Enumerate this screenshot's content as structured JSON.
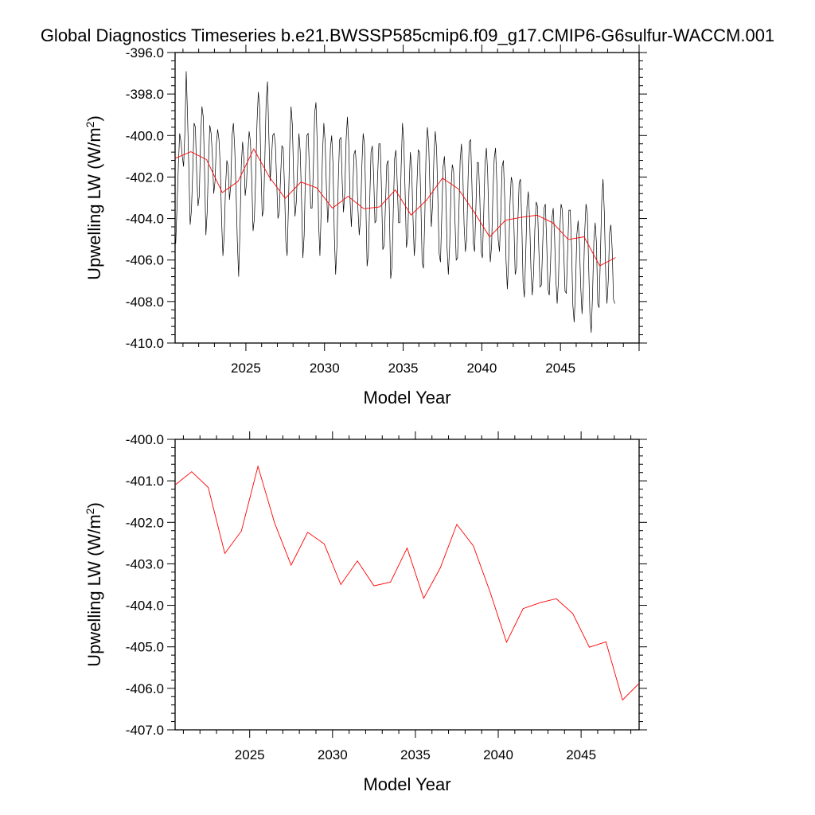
{
  "title": "Global Diagnostics Timeseries b.e21.BWSSP585cmip6.f09_g17.CMIP6-G6sulfur-WACCM.001",
  "colors": {
    "monthly": "#000000",
    "annual": "#ff0000",
    "axis": "#000000"
  },
  "chart_data": [
    {
      "type": "line",
      "xlabel": "Model Year",
      "ylabel": "Upwelling LW (W/m",
      "ylabel_sup": "2",
      "ylabel_close": ")",
      "xlim": [
        2020.5,
        2050.0
      ],
      "ylim": [
        -410.0,
        -396.0
      ],
      "x_ticks": [
        2025,
        2030,
        2035,
        2040,
        2045
      ],
      "y_ticks": [
        "-396.0",
        "-398.0",
        "-400.0",
        "-402.0",
        "-404.0",
        "-406.0",
        "-408.0",
        "-410.0"
      ],
      "grid": false,
      "series": [
        {
          "kind": "monthly",
          "color": "#000000",
          "x_start": 2020.54,
          "x_step": 0.08333,
          "values": [
            -405.2,
            -403.4,
            -401.5,
            -399.9,
            -400.3,
            -401.0,
            -401.5,
            -399.8,
            -396.9,
            -399.0,
            -401.6,
            -404.3,
            -403.6,
            -401.7,
            -399.4,
            -399.6,
            -401.8,
            -403.4,
            -402.9,
            -400.1,
            -398.6,
            -399.1,
            -401.7,
            -404.8,
            -403.7,
            -401.3,
            -399.5,
            -399.9,
            -401.0,
            -402.8,
            -402.2,
            -400.4,
            -399.7,
            -400.2,
            -401.5,
            -404.1,
            -405.8,
            -404.8,
            -402.5,
            -401.2,
            -401.5,
            -403.1,
            -402.4,
            -400.0,
            -399.4,
            -400.6,
            -402.6,
            -405.1,
            -406.8,
            -404.6,
            -401.5,
            -400.3,
            -401.1,
            -402.9,
            -402.3,
            -400.9,
            -399.8,
            -400.3,
            -402.1,
            -404.6,
            -404.0,
            -402.0,
            -399.4,
            -397.9,
            -398.6,
            -401.5,
            -403.9,
            -403.6,
            -401.1,
            -398.3,
            -397.4,
            -399.9,
            -402.2,
            -401.2,
            -400.0,
            -399.9,
            -400.4,
            -402.2,
            -404.0,
            -403.7,
            -402.0,
            -400.5,
            -400.6,
            -402.5,
            -405.1,
            -405.8,
            -403.4,
            -400.4,
            -398.6,
            -399.5,
            -402.1,
            -403.9,
            -403.2,
            -401.5,
            -399.9,
            -400.8,
            -403.1,
            -405.9,
            -404.8,
            -401.7,
            -400.0,
            -399.9,
            -401.6,
            -403.5,
            -403.5,
            -401.6,
            -398.9,
            -398.4,
            -400.5,
            -404.2,
            -405.8,
            -403.6,
            -400.8,
            -399.4,
            -400.3,
            -402.6,
            -404.2,
            -403.0,
            -400.6,
            -400.0,
            -401.4,
            -404.8,
            -406.7,
            -405.3,
            -402.2,
            -400.2,
            -400.1,
            -402.2,
            -403.7,
            -402.7,
            -400.2,
            -399.1,
            -400.4,
            -403.1,
            -404.4,
            -402.8,
            -400.9,
            -400.7,
            -401.6,
            -403.5,
            -404.8,
            -404.0,
            -401.5,
            -399.9,
            -400.4,
            -403.1,
            -406.3,
            -405.7,
            -403.2,
            -400.8,
            -400.5,
            -401.9,
            -404.2,
            -404.1,
            -402.0,
            -400.4,
            -400.4,
            -402.6,
            -405.5,
            -405.3,
            -403.4,
            -401.4,
            -401.2,
            -403.6,
            -406.9,
            -406.3,
            -403.6,
            -401.1,
            -400.7,
            -402.3,
            -404.2,
            -404.2,
            -401.5,
            -399.4,
            -400.3,
            -402.7,
            -405.4,
            -404.9,
            -402.6,
            -400.8,
            -401.6,
            -403.9,
            -405.8,
            -404.9,
            -402.4,
            -400.7,
            -400.8,
            -403.1,
            -406.1,
            -406.4,
            -404.0,
            -400.8,
            -399.6,
            -400.4,
            -402.7,
            -404.4,
            -403.3,
            -401.0,
            -399.8,
            -400.6,
            -403.0,
            -405.7,
            -406.1,
            -403.8,
            -401.5,
            -401.0,
            -402.4,
            -405.4,
            -406.7,
            -405.3,
            -402.6,
            -401.4,
            -401.7,
            -404.0,
            -406.0,
            -405.9,
            -403.8,
            -401.2,
            -400.4,
            -401.7,
            -404.3,
            -405.6,
            -405.0,
            -402.2,
            -400.3,
            -400.2,
            -402.4,
            -405.2,
            -405.6,
            -403.5,
            -401.3,
            -401.3,
            -403.0,
            -405.6,
            -405.9,
            -403.7,
            -401.3,
            -400.6,
            -401.8,
            -404.4,
            -406.1,
            -405.3,
            -402.8,
            -401.1,
            -400.6,
            -402.3,
            -405.0,
            -405.6,
            -403.8,
            -401.5,
            -401.2,
            -403.0,
            -406.0,
            -407.4,
            -406.0,
            -403.3,
            -402.0,
            -402.3,
            -404.3,
            -406.7,
            -406.4,
            -404.2,
            -402.3,
            -402.1,
            -404.1,
            -407.1,
            -407.8,
            -405.8,
            -403.4,
            -402.7,
            -404.0,
            -406.4,
            -407.7,
            -406.7,
            -404.5,
            -403.2,
            -403.4,
            -405.4,
            -407.3,
            -407.2,
            -405.2,
            -403.5,
            -403.3,
            -405.1,
            -407.4,
            -407.7,
            -406.1,
            -404.0,
            -403.5,
            -404.8,
            -406.9,
            -408.1,
            -407.0,
            -404.6,
            -403.3,
            -403.6,
            -405.5,
            -407.5,
            -407.6,
            -405.6,
            -403.6,
            -403.6,
            -405.4,
            -408.2,
            -409.0,
            -407.4,
            -404.8,
            -404.1,
            -405.2,
            -407.3,
            -408.6,
            -407.3,
            -404.7,
            -403.3,
            -403.7,
            -406.2,
            -408.6,
            -409.5,
            -407.7,
            -405.1,
            -404.2,
            -405.2,
            -408.1,
            -408.3,
            -405.8,
            -403.2,
            -402.1,
            -403.7,
            -406.6,
            -408.1,
            -407.0,
            -404.7,
            -404.3,
            -405.5,
            -407.9,
            -408.1
          ]
        },
        {
          "kind": "annual",
          "color": "#ff0000",
          "x": [
            2020.5,
            2021.5,
            2022.5,
            2023.5,
            2024.5,
            2025.5,
            2026.5,
            2027.5,
            2028.5,
            2029.5,
            2030.5,
            2031.5,
            2032.5,
            2033.5,
            2034.5,
            2035.5,
            2036.5,
            2037.5,
            2038.5,
            2039.5,
            2040.5,
            2041.5,
            2042.5,
            2043.5,
            2044.5,
            2045.5,
            2046.5,
            2047.5,
            2048.5
          ],
          "values": [
            -401.1,
            -400.78,
            -401.16,
            -402.75,
            -402.21,
            -400.65,
            -402.01,
            -403.03,
            -402.24,
            -402.52,
            -403.5,
            -402.93,
            -403.53,
            -403.44,
            -402.62,
            -403.83,
            -403.1,
            -402.05,
            -402.57,
            -403.67,
            -404.89,
            -404.08,
            -403.94,
            -403.84,
            -404.2,
            -405.01,
            -404.88,
            -406.28,
            -405.88
          ]
        }
      ]
    },
    {
      "type": "line",
      "xlabel": "Model Year",
      "ylabel": "Upwelling LW (W/m",
      "ylabel_sup": "2",
      "ylabel_close": ")",
      "xlim": [
        2020.5,
        2048.5
      ],
      "ylim": [
        -407.0,
        -400.0
      ],
      "x_ticks": [
        2025,
        2030,
        2035,
        2040,
        2045
      ],
      "y_ticks": [
        "-400.0",
        "-401.0",
        "-402.0",
        "-403.0",
        "-404.0",
        "-405.0",
        "-406.0",
        "-407.0"
      ],
      "grid": false,
      "series": [
        {
          "kind": "annual",
          "color": "#ff0000",
          "x": [
            2020.5,
            2021.5,
            2022.5,
            2023.5,
            2024.5,
            2025.5,
            2026.5,
            2027.5,
            2028.5,
            2029.5,
            2030.5,
            2031.5,
            2032.5,
            2033.5,
            2034.5,
            2035.5,
            2036.5,
            2037.5,
            2038.5,
            2039.5,
            2040.5,
            2041.5,
            2042.5,
            2043.5,
            2044.5,
            2045.5,
            2046.5,
            2047.5,
            2048.5
          ],
          "values": [
            -401.1,
            -400.78,
            -401.16,
            -402.75,
            -402.21,
            -400.65,
            -402.01,
            -403.03,
            -402.24,
            -402.52,
            -403.5,
            -402.93,
            -403.53,
            -403.44,
            -402.62,
            -403.83,
            -403.1,
            -402.05,
            -402.57,
            -403.67,
            -404.89,
            -404.08,
            -403.94,
            -403.84,
            -404.2,
            -405.01,
            -404.88,
            -406.28,
            -405.88
          ]
        }
      ]
    }
  ]
}
